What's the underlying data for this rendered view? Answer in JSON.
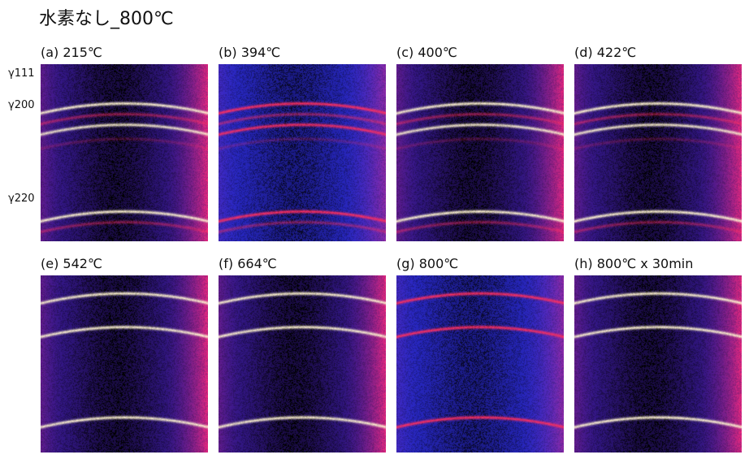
{
  "title": "水素なし_800℃",
  "ring_labels": [
    "γ111",
    "γ200",
    "γ220"
  ],
  "panels": [
    {
      "label": "(a) 215℃",
      "style": "bright"
    },
    {
      "label": "(b) 394℃",
      "style": "dim"
    },
    {
      "label": "(c) 400℃",
      "style": "bright"
    },
    {
      "label": "(d) 422℃",
      "style": "bright"
    },
    {
      "label": "(e) 542℃",
      "style": "bright"
    },
    {
      "label": "(f) 664℃",
      "style": "bright"
    },
    {
      "label": "(g) 800℃",
      "style": "dim"
    },
    {
      "label": "(h) 800℃ x 30min",
      "style": "bright"
    }
  ],
  "colors": {
    "background_bright": "#3a1a9a",
    "background_dim": "#2a2ad0",
    "ring_hot": "#fff4d0",
    "ring_warm": "#ff3060",
    "edge_glow": "#ff2a7a"
  }
}
